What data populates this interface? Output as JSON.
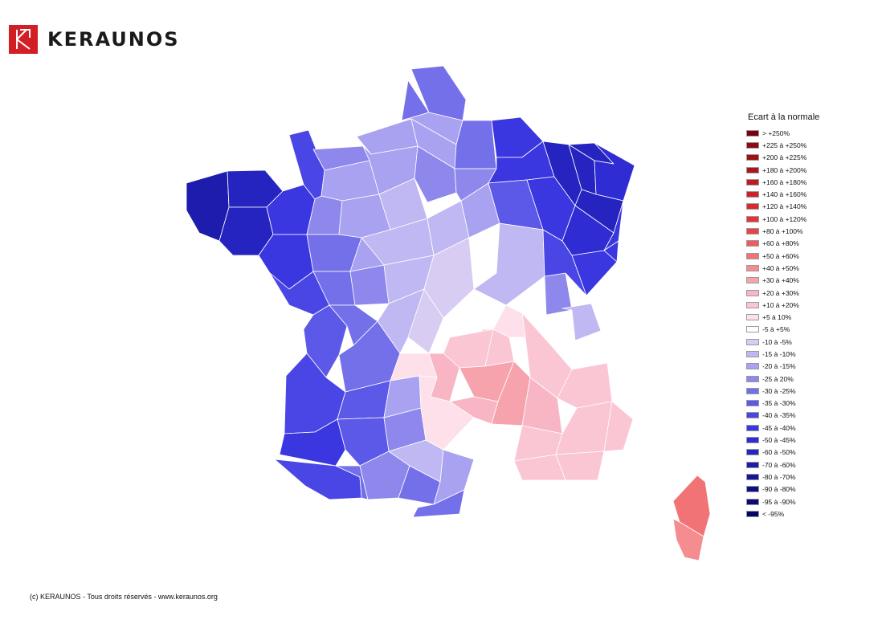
{
  "brand": {
    "name": "KERAUNOS",
    "logo_color": "#d21f26"
  },
  "legend": {
    "title": "Ecart à la normale",
    "items": [
      {
        "label": "> +250%",
        "color": "#7a0010"
      },
      {
        "label": "+225 à +250%",
        "color": "#8c0a14"
      },
      {
        "label": "+200 à +225%",
        "color": "#9c1018"
      },
      {
        "label": "+180 à +200%",
        "color": "#ac151c"
      },
      {
        "label": "+160 à +180%",
        "color": "#bc1b22"
      },
      {
        "label": "+140 à +160%",
        "color": "#cc2228"
      },
      {
        "label": "+120 à +140%",
        "color": "#d82a2f"
      },
      {
        "label": "+100 à +120%",
        "color": "#e23438"
      },
      {
        "label": "+80 à +100%",
        "color": "#e84446"
      },
      {
        "label": "+60 à +80%",
        "color": "#ee5a5d"
      },
      {
        "label": "+50 à +60%",
        "color": "#f27376"
      },
      {
        "label": "+40 à +50%",
        "color": "#f58c90"
      },
      {
        "label": "+30 à +40%",
        "color": "#f6a3ad"
      },
      {
        "label": "+20 à +30%",
        "color": "#f8b6c4"
      },
      {
        "label": "+10 à +20%",
        "color": "#fac6d3"
      },
      {
        "label": "+5 à 10%",
        "color": "#fde0ea"
      },
      {
        "label": "-5 à +5%",
        "color": "#ffffff"
      },
      {
        "label": "-10 à -5%",
        "color": "#d8ccf2"
      },
      {
        "label": "-15 à -10%",
        "color": "#c0b8f2"
      },
      {
        "label": "-20 à -15%",
        "color": "#a8a2f0"
      },
      {
        "label": "-25 à 20%",
        "color": "#8e88ec"
      },
      {
        "label": "-30 à -25%",
        "color": "#7470ea"
      },
      {
        "label": "-35 à -30%",
        "color": "#5c58e8"
      },
      {
        "label": "-40 à -35%",
        "color": "#4a46e6"
      },
      {
        "label": "-45 à -40%",
        "color": "#3a36e0"
      },
      {
        "label": "-50 à -45%",
        "color": "#2e2cd2"
      },
      {
        "label": "-60 à -50%",
        "color": "#2624c0"
      },
      {
        "label": "-70 à -60%",
        "color": "#1e1cac"
      },
      {
        "label": "-80 à -70%",
        "color": "#161498"
      },
      {
        "label": "-90 à -80%",
        "color": "#100e84"
      },
      {
        "label": "-95 à -90%",
        "color": "#0a0a74"
      },
      {
        "label": "< -95%",
        "color": "#050566"
      }
    ]
  },
  "map_regions": [
    {
      "name": "finistere",
      "bin": 27
    },
    {
      "name": "cotes-armor",
      "bin": 26
    },
    {
      "name": "morbihan",
      "bin": 26
    },
    {
      "name": "ille-et-vilaine",
      "bin": 24
    },
    {
      "name": "loire-atlantique",
      "bin": 24
    },
    {
      "name": "vendee",
      "bin": 23
    },
    {
      "name": "charente-maritime",
      "bin": 22
    },
    {
      "name": "gironde",
      "bin": 23
    },
    {
      "name": "landes",
      "bin": 24
    },
    {
      "name": "pyrenees-atlantiques",
      "bin": 23
    },
    {
      "name": "manche",
      "bin": 23
    },
    {
      "name": "calvados",
      "bin": 20
    },
    {
      "name": "orne",
      "bin": 19
    },
    {
      "name": "mayenne",
      "bin": 20
    },
    {
      "name": "sarthe",
      "bin": 19
    },
    {
      "name": "maine-et-loire",
      "bin": 21
    },
    {
      "name": "deux-sevres",
      "bin": 21
    },
    {
      "name": "vienne",
      "bin": 20
    },
    {
      "name": "charente",
      "bin": 21
    },
    {
      "name": "dordogne",
      "bin": 21
    },
    {
      "name": "lot-et-garonne",
      "bin": 22
    },
    {
      "name": "gers",
      "bin": 22
    },
    {
      "name": "hautes-pyrenees",
      "bin": 21
    },
    {
      "name": "haute-garonne",
      "bin": 20
    },
    {
      "name": "ariege",
      "bin": 21
    },
    {
      "name": "tarn-et-garonne",
      "bin": 20
    },
    {
      "name": "lot",
      "bin": 19
    },
    {
      "name": "tarn",
      "bin": 18
    },
    {
      "name": "aude",
      "bin": 19
    },
    {
      "name": "pyrenees-orientales",
      "bin": 21
    },
    {
      "name": "seine-maritime",
      "bin": 19
    },
    {
      "name": "eure",
      "bin": 19
    },
    {
      "name": "eure-et-loir",
      "bin": 18
    },
    {
      "name": "loir-et-cher",
      "bin": 18
    },
    {
      "name": "indre-et-loire",
      "bin": 19
    },
    {
      "name": "indre",
      "bin": 18
    },
    {
      "name": "haute-vienne",
      "bin": 18
    },
    {
      "name": "creuse",
      "bin": 17
    },
    {
      "name": "correze",
      "bin": 15
    },
    {
      "name": "loiret",
      "bin": 18
    },
    {
      "name": "cher",
      "bin": 17
    },
    {
      "name": "allier",
      "bin": 16
    },
    {
      "name": "yonne",
      "bin": 19
    },
    {
      "name": "nievre",
      "bin": 16
    },
    {
      "name": "cote-d-or",
      "bin": 20
    },
    {
      "name": "saone-et-loire",
      "bin": 18
    },
    {
      "name": "ain",
      "bin": 20
    },
    {
      "name": "haute-savoie",
      "bin": 18
    },
    {
      "name": "savoie",
      "bin": 16
    },
    {
      "name": "isere",
      "bin": 14
    },
    {
      "name": "rhone",
      "bin": 15
    },
    {
      "name": "loire",
      "bin": 14
    },
    {
      "name": "puy-de-dome",
      "bin": 14
    },
    {
      "name": "cantal",
      "bin": 13
    },
    {
      "name": "haute-loire",
      "bin": 12
    },
    {
      "name": "aveyron",
      "bin": 15
    },
    {
      "name": "lozere",
      "bin": 13
    },
    {
      "name": "ardeche",
      "bin": 12
    },
    {
      "name": "drome",
      "bin": 13
    },
    {
      "name": "gard",
      "bin": 16
    },
    {
      "name": "herault",
      "bin": 16
    },
    {
      "name": "vaucluse",
      "bin": 14
    },
    {
      "name": "hautes-alpes",
      "bin": 14
    },
    {
      "name": "alpes-haute-provence",
      "bin": 14
    },
    {
      "name": "bouches-du-rhone",
      "bin": 14
    },
    {
      "name": "var",
      "bin": 14
    },
    {
      "name": "alpes-maritimes",
      "bin": 14
    },
    {
      "name": "nord",
      "bin": 21
    },
    {
      "name": "pas-de-calais",
      "bin": 21
    },
    {
      "name": "somme",
      "bin": 19
    },
    {
      "name": "oise",
      "bin": 19
    },
    {
      "name": "aisne",
      "bin": 21
    },
    {
      "name": "ardennes",
      "bin": 24
    },
    {
      "name": "paris-region",
      "bin": 20
    },
    {
      "name": "seine-et-marne",
      "bin": 20
    },
    {
      "name": "marne",
      "bin": 24
    },
    {
      "name": "aube",
      "bin": 22
    },
    {
      "name": "haute-marne",
      "bin": 24
    },
    {
      "name": "meuse",
      "bin": 26
    },
    {
      "name": "meurthe-et-moselle",
      "bin": 26
    },
    {
      "name": "moselle",
      "bin": 26
    },
    {
      "name": "bas-rhin",
      "bin": 25
    },
    {
      "name": "vosges",
      "bin": 26
    },
    {
      "name": "haut-rhin",
      "bin": 24
    },
    {
      "name": "haute-saone",
      "bin": 25
    },
    {
      "name": "territoire-de-belfort",
      "bin": 24
    },
    {
      "name": "doubs",
      "bin": 24
    },
    {
      "name": "jura",
      "bin": 23
    },
    {
      "name": "haute-corse",
      "bin": 10
    },
    {
      "name": "corse-du-sud",
      "bin": 11
    }
  ],
  "footer": {
    "text": "(c) KERAUNOS - Tous droits réservés - www.keraunos.org"
  }
}
